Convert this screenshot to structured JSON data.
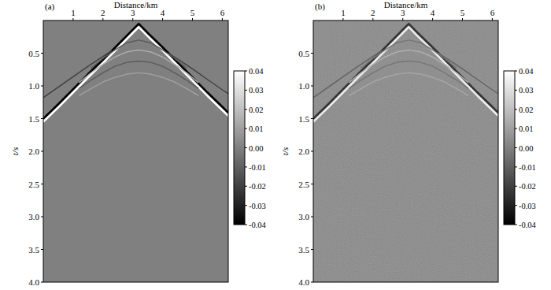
{
  "chart_data": [
    {
      "type": "line",
      "title": "(a)",
      "x_label": "Distance/km",
      "y_label": "t/s",
      "xlim": [
        0,
        6.2
      ],
      "ylim": [
        0,
        4.0
      ],
      "xticks": [
        1,
        2,
        3,
        4,
        5,
        6
      ],
      "yticks": [
        0.5,
        {
          "value": 1.0,
          "label": "1.0"
        },
        1.5,
        {
          "value": 2.0,
          "label": "2.0"
        },
        2.5,
        {
          "value": 3.0,
          "label": "3.0"
        },
        3.5,
        {
          "value": 4.0,
          "label": "4.0"
        }
      ],
      "colorbar": {
        "range": [
          -0.04,
          0.04
        ],
        "colors": [
          "#000000",
          "#ffffff"
        ],
        "ticks": [
          -0.04,
          -0.03,
          -0.02,
          -0.01,
          {
            "value": 0,
            "label": "0.00"
          },
          0.01,
          0.02,
          0.03,
          0.04
        ]
      },
      "color": "#808080",
      "series": [
        {
          "color": "#000000",
          "x": [
            0,
            0.5,
            1,
            1.5,
            2,
            2.5,
            3,
            3.2,
            3.5,
            4,
            4.5,
            5,
            5.5,
            6,
            6.2
          ],
          "values": [
            1.5,
            1.28,
            1.05,
            0.82,
            0.6,
            0.37,
            0.14,
            0.05,
            0.19,
            0.41,
            0.64,
            0.87,
            1.1,
            1.32,
            1.41
          ]
        },
        {
          "color": "#ffffff",
          "x": [
            0,
            0.5,
            1,
            1.5,
            2,
            2.5,
            3,
            3.2,
            3.5,
            4,
            4.5,
            5,
            5.5,
            6,
            6.2
          ],
          "values": [
            1.55,
            1.33,
            1.1,
            0.87,
            0.65,
            0.42,
            0.19,
            0.1,
            0.24,
            0.46,
            0.69,
            0.92,
            1.15,
            1.37,
            1.46
          ]
        },
        {
          "color": "#404040",
          "x": [
            0,
            0.5,
            1,
            1.5,
            2,
            2.3
          ],
          "values": [
            1.18,
            1.02,
            0.86,
            0.7,
            0.55,
            0.46
          ]
        },
        {
          "color": "#404040",
          "x": [
            4.2,
            4.6,
            5,
            5.5,
            6,
            6.2
          ],
          "values": [
            0.5,
            0.62,
            0.74,
            0.9,
            1.06,
            1.12
          ]
        },
        {
          "color": "#5a5a5a",
          "x": [
            1.6,
            2,
            2.4,
            2.8,
            3.2,
            3.6,
            4,
            4.4,
            4.8
          ],
          "values": [
            0.73,
            0.58,
            0.45,
            0.34,
            0.3,
            0.34,
            0.45,
            0.58,
            0.73
          ]
        },
        {
          "color": "#b0b0b0",
          "x": [
            1.2,
            1.6,
            2,
            2.4,
            2.8,
            3.2,
            3.6,
            4,
            4.4,
            4.8,
            5.2
          ],
          "values": [
            0.95,
            0.8,
            0.67,
            0.56,
            0.48,
            0.45,
            0.48,
            0.56,
            0.67,
            0.8,
            0.95
          ]
        },
        {
          "color": "#5a5a5a",
          "x": [
            1.2,
            1.6,
            2,
            2.4,
            2.8,
            3.2,
            3.6,
            4,
            4.4,
            4.8,
            5.2
          ],
          "values": [
            1.04,
            0.91,
            0.8,
            0.7,
            0.64,
            0.62,
            0.64,
            0.7,
            0.8,
            0.91,
            1.04
          ]
        },
        {
          "color": "#a0a0a0",
          "x": [
            1.2,
            1.6,
            2,
            2.4,
            2.8,
            3.2,
            3.6,
            4,
            4.4,
            4.8,
            5.2
          ],
          "values": [
            1.15,
            1.04,
            0.94,
            0.87,
            0.82,
            0.8,
            0.82,
            0.87,
            0.94,
            1.04,
            1.15
          ]
        }
      ]
    },
    {
      "type": "line",
      "title": "(b)",
      "x_label": "Distance/km",
      "y_label": "t/s",
      "xlim": [
        0,
        6.2
      ],
      "ylim": [
        0,
        4.0
      ],
      "xticks": [
        1,
        2,
        3,
        4,
        5,
        6
      ],
      "yticks": [
        0.5,
        {
          "value": 1.0,
          "label": "1.0"
        },
        1.5,
        {
          "value": 2.0,
          "label": "2.0"
        },
        2.5,
        {
          "value": 3.0,
          "label": "3.0"
        },
        3.5,
        {
          "value": 4.0,
          "label": "4.0"
        }
      ],
      "colorbar": {
        "range": [
          -0.04,
          0.04
        ],
        "colors": [
          "#000000",
          "#ffffff"
        ],
        "ticks": [
          -0.04,
          -0.03,
          -0.02,
          -0.01,
          {
            "value": 0,
            "label": "0.00"
          },
          0.01,
          0.02,
          0.03,
          0.04
        ]
      },
      "color": "#808080",
      "series": [
        {
          "color": "#000000",
          "x": [
            0,
            0.5,
            1,
            1.5,
            2,
            2.5,
            3,
            3.2,
            3.5,
            4,
            4.5,
            5,
            5.5,
            6,
            6.2
          ],
          "values": [
            1.5,
            1.28,
            1.05,
            0.82,
            0.6,
            0.37,
            0.14,
            0.05,
            0.19,
            0.41,
            0.64,
            0.87,
            1.1,
            1.32,
            1.41
          ]
        },
        {
          "color": "#ffffff",
          "x": [
            0,
            0.5,
            1,
            1.5,
            2,
            2.5,
            3,
            3.2,
            3.5,
            4,
            4.5,
            5,
            5.5,
            6,
            6.2
          ],
          "values": [
            1.55,
            1.33,
            1.1,
            0.87,
            0.65,
            0.42,
            0.19,
            0.1,
            0.24,
            0.46,
            0.69,
            0.92,
            1.15,
            1.37,
            1.46
          ]
        },
        {
          "color": "#404040",
          "x": [
            0,
            0.5,
            1,
            1.5,
            2,
            2.3
          ],
          "values": [
            1.18,
            1.02,
            0.86,
            0.7,
            0.55,
            0.46
          ]
        },
        {
          "color": "#404040",
          "x": [
            4.2,
            4.6,
            5,
            5.5,
            6,
            6.2
          ],
          "values": [
            0.5,
            0.62,
            0.74,
            0.9,
            1.06,
            1.12
          ]
        },
        {
          "color": "#5a5a5a",
          "x": [
            1.6,
            2,
            2.4,
            2.8,
            3.2,
            3.6,
            4,
            4.4,
            4.8
          ],
          "values": [
            0.73,
            0.58,
            0.45,
            0.34,
            0.3,
            0.34,
            0.45,
            0.58,
            0.73
          ]
        },
        {
          "color": "#b0b0b0",
          "x": [
            1.2,
            1.6,
            2,
            2.4,
            2.8,
            3.2,
            3.6,
            4,
            4.4,
            4.8,
            5.2
          ],
          "values": [
            0.95,
            0.8,
            0.67,
            0.56,
            0.48,
            0.45,
            0.48,
            0.56,
            0.67,
            0.8,
            0.95
          ]
        },
        {
          "color": "#5a5a5a",
          "x": [
            1.2,
            1.6,
            2,
            2.4,
            2.8,
            3.2,
            3.6,
            4,
            4.4,
            4.8,
            5.2
          ],
          "values": [
            1.04,
            0.91,
            0.8,
            0.7,
            0.64,
            0.62,
            0.64,
            0.7,
            0.8,
            0.91,
            1.04
          ]
        },
        {
          "color": "#a0a0a0",
          "x": [
            1.2,
            1.6,
            2,
            2.4,
            2.8,
            3.2,
            3.6,
            4,
            4.4,
            4.8,
            5.2
          ],
          "values": [
            1.15,
            1.04,
            0.94,
            0.87,
            0.82,
            0.8,
            0.82,
            0.87,
            0.94,
            1.04,
            1.15
          ]
        }
      ]
    }
  ]
}
